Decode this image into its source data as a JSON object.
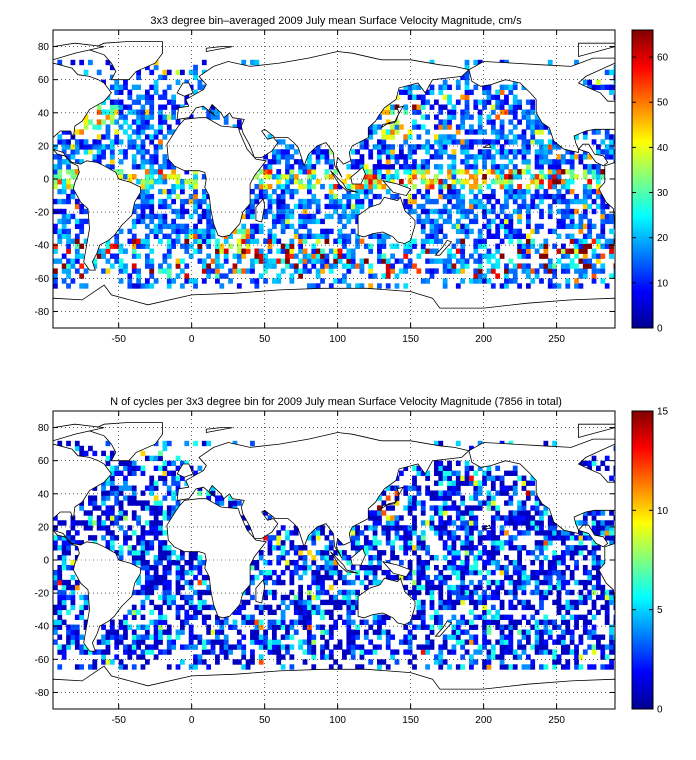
{
  "chart_data": [
    {
      "type": "heatmap",
      "title": "3x3 degree bin–averaged 2009 July mean Surface Velocity Magnitude, cm/s",
      "xlabel": "",
      "ylabel": "",
      "xlim": [
        -95,
        290
      ],
      "ylim": [
        -90,
        90
      ],
      "xticks": [
        -50,
        0,
        50,
        100,
        150,
        200,
        250
      ],
      "yticks": [
        -80,
        -60,
        -40,
        -20,
        0,
        20,
        40,
        60,
        80
      ],
      "grid": "dotted",
      "bin_size_deg": 3,
      "colorbar": {
        "range": [
          0,
          66
        ],
        "ticks": [
          0,
          10,
          20,
          30,
          40,
          50,
          60
        ],
        "colormap": "jet"
      },
      "bins_summary": "Sampled ocean bins between about 70N and 65S across all basins; values mostly 5-25 cm/s, with higher values (40-66 cm/s) along the equatorial band, western boundary currents (Gulf Stream, Kuroshio, Agulhas, Brazil/Malvinas confluence) and scattered Southern Ocean bins."
    },
    {
      "type": "heatmap",
      "title": "N of cycles per 3x3 degree bin for 2009 July mean Surface Velocity Magnitude (7856 in total)",
      "xlabel": "",
      "ylabel": "",
      "xlim": [
        -95,
        290
      ],
      "ylim": [
        -90,
        90
      ],
      "xticks": [
        -50,
        0,
        50,
        100,
        150,
        200,
        250
      ],
      "yticks": [
        -80,
        -60,
        -40,
        -20,
        0,
        20,
        40,
        60,
        80
      ],
      "grid": "dotted",
      "bin_size_deg": 3,
      "total_cycles": 7856,
      "colorbar": {
        "range": [
          0,
          15
        ],
        "ticks": [
          0,
          5,
          10,
          15
        ],
        "colormap": "jet"
      },
      "bins_summary": "Same bins as the velocity map; most bins hold 1-4 cycles, a few hold 6-12, with a maximum around 15 near the western North Pacific (Japan) and the Kuroshio region."
    }
  ]
}
